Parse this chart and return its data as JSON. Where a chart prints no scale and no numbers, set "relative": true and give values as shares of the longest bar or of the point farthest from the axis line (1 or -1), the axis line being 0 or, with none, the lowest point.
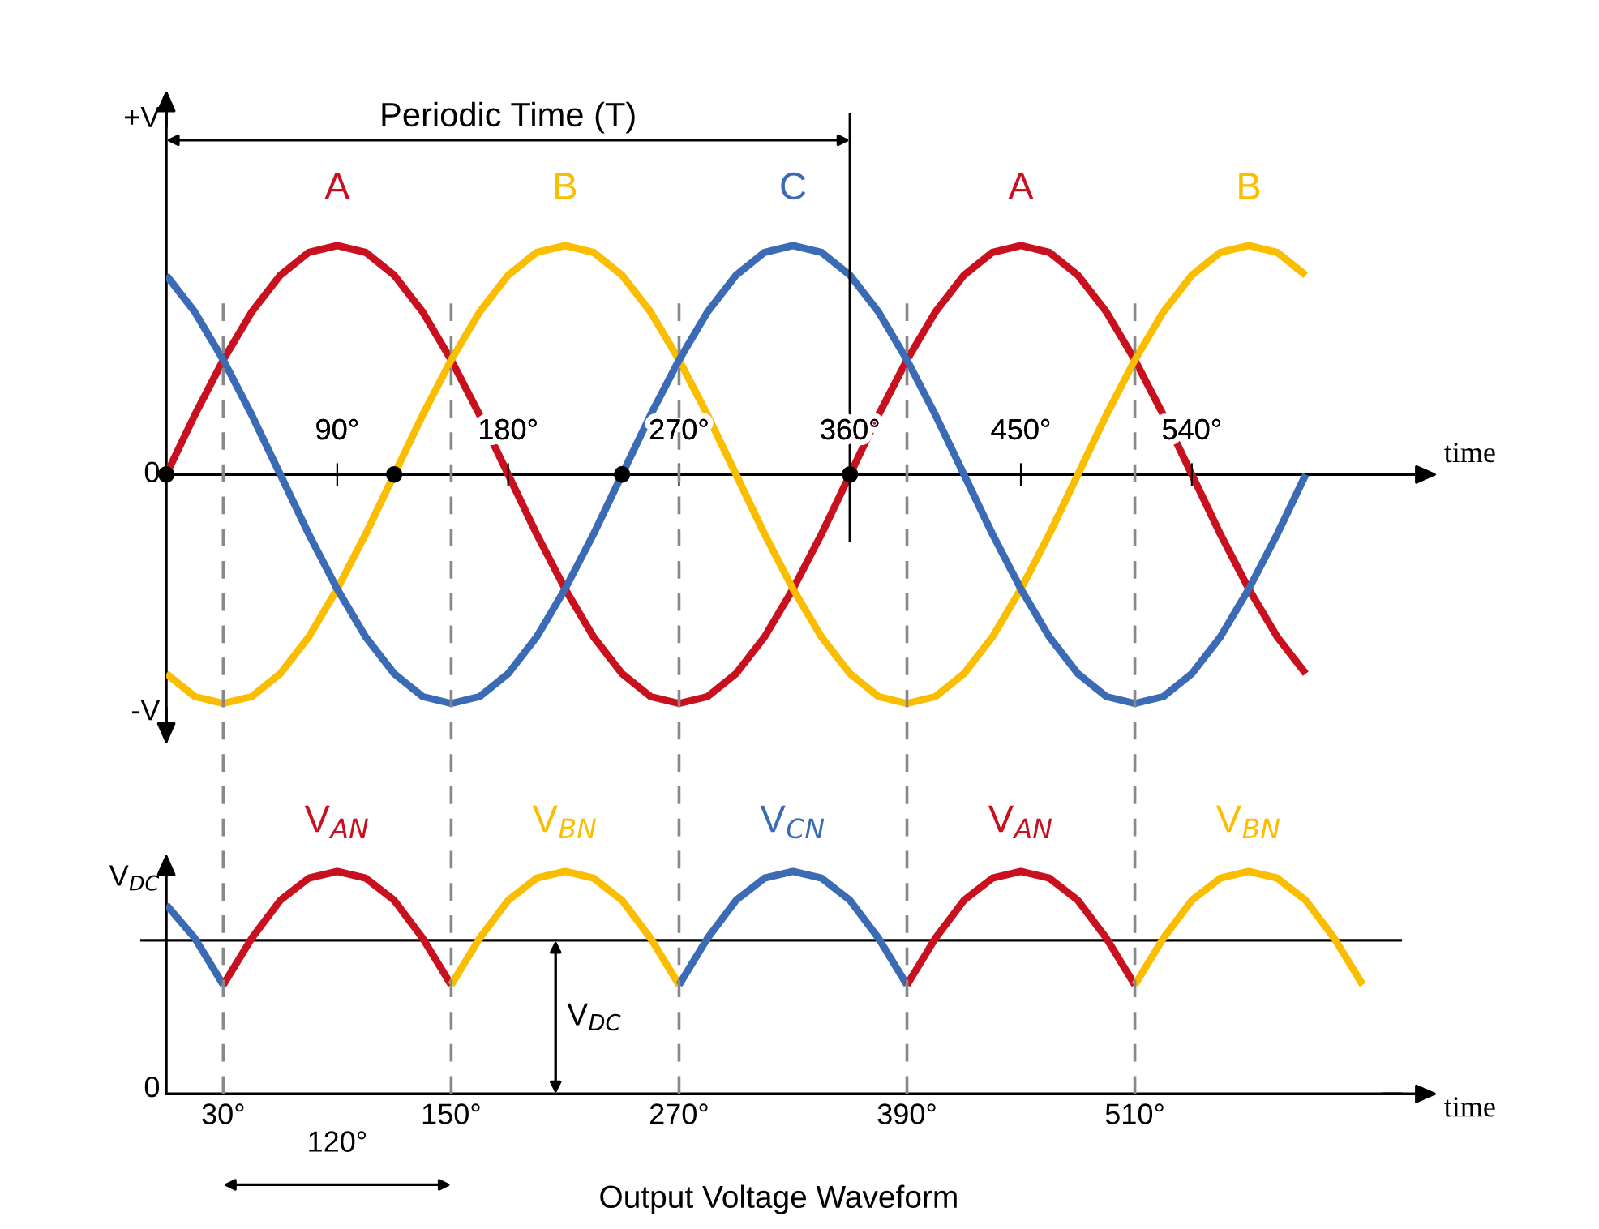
{
  "chart_data": [
    {
      "type": "line",
      "xlabel": "time",
      "xlim": [
        0,
        650
      ],
      "relative": true,
      "xticks": [
        {
          "value": 90,
          "label": "90°"
        },
        {
          "value": 180,
          "label": "180°"
        },
        {
          "value": 270,
          "label": "270°"
        },
        {
          "value": 360,
          "label": "360°"
        },
        {
          "value": 450,
          "label": "450°"
        },
        {
          "value": 540,
          "label": "540°"
        }
      ],
      "x": [
        0,
        15,
        30,
        45,
        60,
        75,
        90,
        105,
        120,
        135,
        150,
        165,
        180,
        195,
        210,
        225,
        240,
        255,
        270,
        285,
        300,
        315,
        330,
        345,
        360,
        375,
        390,
        405,
        420,
        435,
        450,
        465,
        480,
        495,
        510,
        525,
        540,
        555,
        570,
        585,
        600
      ],
      "series": [
        {
          "name": "A",
          "color": "#c8101e",
          "values": [
            0,
            0.26,
            0.5,
            0.71,
            0.87,
            0.97,
            1,
            0.97,
            0.87,
            0.71,
            0.5,
            0.26,
            0,
            -0.26,
            -0.5,
            -0.71,
            -0.87,
            -0.97,
            -1,
            -0.97,
            -0.87,
            -0.71,
            -0.5,
            -0.26,
            0,
            0.26,
            0.5,
            0.71,
            0.87,
            0.97,
            1,
            0.97,
            0.87,
            0.71,
            0.5,
            0.26,
            0,
            -0.26,
            -0.5,
            -0.71,
            -0.87
          ]
        },
        {
          "name": "B",
          "color": "#fbbd00",
          "values": [
            -0.87,
            -0.97,
            -1,
            -0.97,
            -0.87,
            -0.71,
            -0.5,
            -0.26,
            0,
            0.26,
            0.5,
            0.71,
            0.87,
            0.97,
            1,
            0.97,
            0.87,
            0.71,
            0.5,
            0.26,
            0,
            -0.26,
            -0.5,
            -0.71,
            -0.87,
            -0.97,
            -1,
            -0.97,
            -0.87,
            -0.71,
            -0.5,
            -0.26,
            0,
            0.26,
            0.5,
            0.71,
            0.87,
            0.97,
            1,
            0.97,
            0.87
          ]
        },
        {
          "name": "C",
          "color": "#3a6bb4",
          "values": [
            0.87,
            0.71,
            0.5,
            0.26,
            0,
            -0.26,
            -0.5,
            -0.71,
            -0.87,
            -0.97,
            -1,
            -0.97,
            -0.87,
            -0.71,
            -0.5,
            -0.26,
            0,
            0.26,
            0.5,
            0.71,
            0.87,
            0.97,
            1,
            0.97,
            0.87,
            0.71,
            0.5,
            0.26,
            0,
            -0.26,
            -0.5,
            -0.71,
            -0.87,
            -0.97,
            -1,
            -0.97,
            -0.87,
            -0.71,
            -0.5,
            -0.26,
            0
          ]
        },
        {
          "type": "scatter",
          "marker": "circle",
          "color": "#000000",
          "x": [
            0,
            120,
            240,
            360
          ],
          "values": [
            0,
            0,
            0,
            0
          ]
        }
      ],
      "ref_lines": [
        {
          "axis": "x",
          "value": 360,
          "color": "#000000",
          "line_style": "solid"
        }
      ],
      "annotations": [
        "Periodic Time (T)",
        "+V",
        "0",
        "-V"
      ],
      "grid": false,
      "legend": false,
      "marker": "none"
    },
    {
      "type": "line",
      "xlabel": "time",
      "xlim": [
        0,
        650
      ],
      "relative": true,
      "xticks": [
        {
          "value": 30,
          "label": "30°"
        },
        {
          "value": 150,
          "label": "150°"
        },
        {
          "value": 270,
          "label": "270°"
        },
        {
          "value": 390,
          "label": "390°"
        },
        {
          "value": 510,
          "label": "510°"
        }
      ],
      "series": [
        {
          "color": "#3a6bb4",
          "x": [
            0,
            15,
            30
          ],
          "values": [
            0.85,
            0.7,
            0.49
          ]
        },
        {
          "name": "V$_{AN}$",
          "color": "#c8101e",
          "x": [
            30,
            45,
            60,
            75,
            90,
            105,
            120,
            135,
            150
          ],
          "values": [
            0.49,
            0.7,
            0.87,
            0.97,
            1,
            0.97,
            0.87,
            0.7,
            0.49
          ]
        },
        {
          "name": "V$_{BN}$",
          "color": "#fbbd00",
          "x": [
            150,
            165,
            180,
            195,
            210,
            225,
            240,
            255,
            270
          ],
          "values": [
            0.49,
            0.7,
            0.87,
            0.97,
            1,
            0.97,
            0.87,
            0.7,
            0.49
          ]
        },
        {
          "name": "V$_{CN}$",
          "color": "#3a6bb4",
          "x": [
            270,
            285,
            300,
            315,
            330,
            345,
            360,
            375,
            390
          ],
          "values": [
            0.49,
            0.7,
            0.87,
            0.97,
            1,
            0.97,
            0.87,
            0.7,
            0.49
          ]
        },
        {
          "name": "V$_{AN}$",
          "color": "#c8101e",
          "x": [
            390,
            405,
            420,
            435,
            450,
            465,
            480,
            495,
            510
          ],
          "values": [
            0.49,
            0.7,
            0.87,
            0.97,
            1,
            0.97,
            0.87,
            0.7,
            0.49
          ]
        },
        {
          "name": "V$_{BN}$",
          "color": "#fbbd00",
          "x": [
            510,
            525,
            540,
            555,
            570,
            585,
            600,
            615,
            630
          ],
          "values": [
            0.49,
            0.7,
            0.87,
            0.97,
            1,
            0.97,
            0.87,
            0.7,
            0.49
          ]
        }
      ],
      "ref_lines": [
        {
          "axis": "y",
          "value": 0.69,
          "color": "#000000",
          "line_style": "solid"
        },
        {
          "axis": "x",
          "value": 30,
          "color": "#888888",
          "line_style": "dashed"
        },
        {
          "axis": "x",
          "value": 150,
          "color": "#888888",
          "line_style": "dashed"
        },
        {
          "axis": "x",
          "value": 270,
          "color": "#888888",
          "line_style": "dashed"
        },
        {
          "axis": "x",
          "value": 390,
          "color": "#888888",
          "line_style": "dashed"
        },
        {
          "axis": "x",
          "value": 510,
          "color": "#888888",
          "line_style": "dashed"
        }
      ],
      "annotations": [
        "V$_{DC}$",
        "0",
        {
          "text": "V$_{DC}$",
          "x": 205,
          "y": 0.69
        },
        "120°",
        "Output Voltage Waveform"
      ],
      "grid": false,
      "legend": false,
      "marker": "none"
    }
  ]
}
